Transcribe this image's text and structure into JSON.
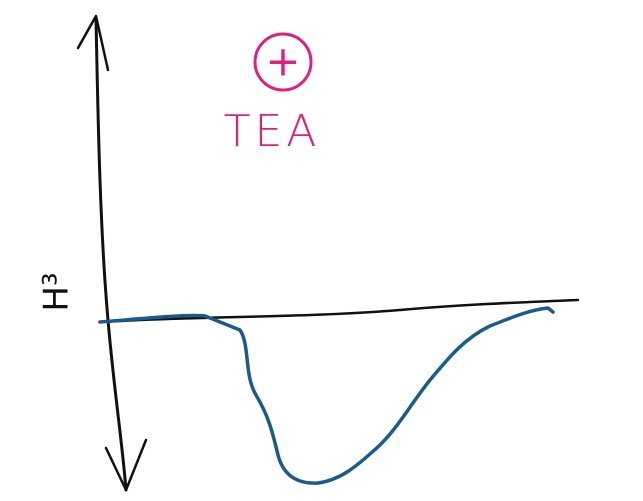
{
  "annotation": {
    "symbol": "+",
    "label": "TEA"
  },
  "axis_label": "H³"
}
